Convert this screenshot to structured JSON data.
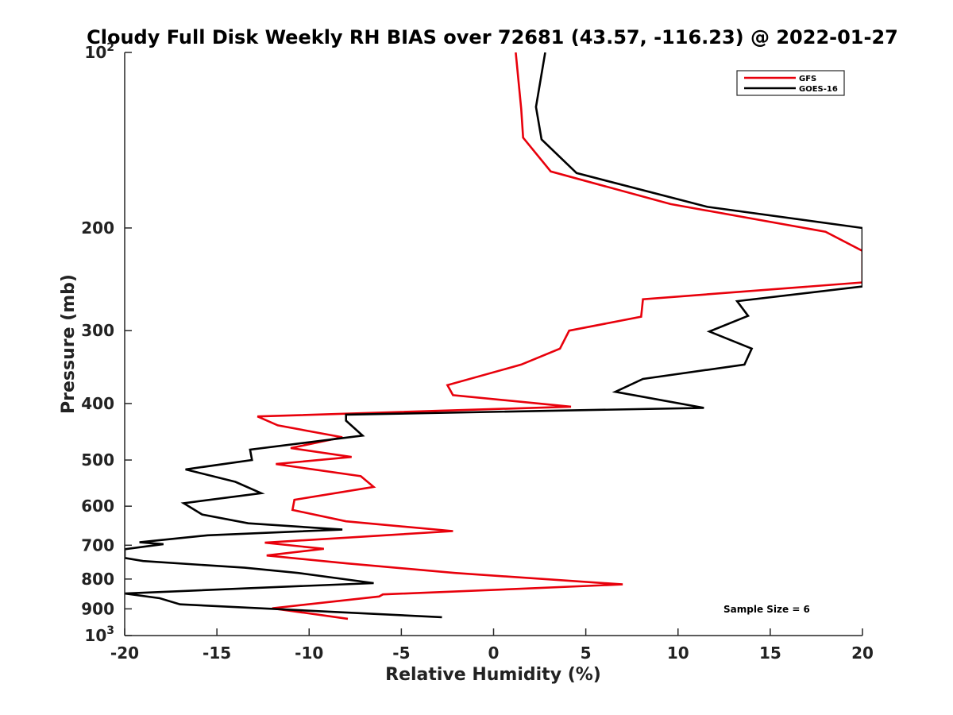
{
  "chart_data": {
    "type": "line",
    "title": "Cloudy Full Disk Weekly RH BIAS over 72681 (43.57, -116.23) @ 2022-01-27",
    "xlabel": "Relative Humidity (%)",
    "ylabel": "Pressure (mb)",
    "xlim": [
      -20,
      20
    ],
    "ylim": [
      1000,
      100
    ],
    "y_scale": "log",
    "y_reversed": true,
    "grid": false,
    "legend_position": "top-right",
    "annotation": "Sample Size = 6",
    "x_ticks": [
      -20,
      -15,
      -10,
      -5,
      0,
      5,
      10,
      15,
      20
    ],
    "x_tick_labels": [
      "-20",
      "-15",
      "-10",
      "-5",
      "0",
      "5",
      "10",
      "15",
      "20"
    ],
    "y_ticks": [
      {
        "value": 100,
        "base": "10",
        "exp": "2"
      },
      {
        "value": 200,
        "label": "200"
      },
      {
        "value": 300,
        "label": "300"
      },
      {
        "value": 400,
        "label": "400"
      },
      {
        "value": 500,
        "label": "500"
      },
      {
        "value": 600,
        "label": "600"
      },
      {
        "value": 700,
        "label": "700"
      },
      {
        "value": 800,
        "label": "800"
      },
      {
        "value": 900,
        "label": "900"
      },
      {
        "value": 1000,
        "base": "10",
        "exp": "3"
      }
    ],
    "series": [
      {
        "name": "GFS",
        "color": "#e8000b",
        "points": [
          [
            1.2,
            100
          ],
          [
            1.5,
            125
          ],
          [
            1.6,
            140
          ],
          [
            3.1,
            160
          ],
          [
            9.6,
            182
          ],
          [
            18.0,
            203
          ],
          [
            20.0,
            219
          ],
          [
            20.0,
            248
          ],
          [
            8.1,
            265
          ],
          [
            8.0,
            284
          ],
          [
            4.1,
            300
          ],
          [
            3.6,
            322
          ],
          [
            1.5,
            343
          ],
          [
            -2.5,
            372
          ],
          [
            -2.2,
            387
          ],
          [
            4.2,
            405
          ],
          [
            -12.8,
            421
          ],
          [
            -11.7,
            436
          ],
          [
            -8.2,
            457
          ],
          [
            -11.0,
            477
          ],
          [
            -7.7,
            494
          ],
          [
            -11.8,
            508
          ],
          [
            -7.2,
            533
          ],
          [
            -6.5,
            556
          ],
          [
            -10.8,
            585
          ],
          [
            -10.9,
            609
          ],
          [
            -8.0,
            637
          ],
          [
            -2.2,
            662
          ],
          [
            -12.4,
            693
          ],
          [
            -9.2,
            710
          ],
          [
            -12.3,
            729
          ],
          [
            -8.0,
            752
          ],
          [
            -2.1,
            781
          ],
          [
            7.0,
            817
          ],
          [
            2.0,
            830
          ],
          [
            -6.0,
            850
          ],
          [
            -6.2,
            857
          ],
          [
            -12.0,
            898
          ],
          [
            -7.9,
            936
          ]
        ]
      },
      {
        "name": "GOES-16",
        "color": "#000000",
        "points": [
          [
            2.8,
            100
          ],
          [
            2.3,
            124
          ],
          [
            2.6,
            141
          ],
          [
            4.5,
            161
          ],
          [
            11.6,
            184
          ],
          [
            20.0,
            200
          ],
          [
            20.0,
            252
          ],
          [
            13.2,
            267
          ],
          [
            13.8,
            283
          ],
          [
            11.7,
            301
          ],
          [
            14.0,
            322
          ],
          [
            13.6,
            343
          ],
          [
            8.1,
            363
          ],
          [
            6.6,
            382
          ],
          [
            11.4,
            407
          ],
          [
            -8.0,
            418
          ],
          [
            -8.0,
            428
          ],
          [
            -7.1,
            454
          ],
          [
            -13.2,
            480
          ],
          [
            -13.1,
            500
          ],
          [
            -16.7,
            519
          ],
          [
            -14.0,
            545
          ],
          [
            -12.6,
            570
          ],
          [
            -16.8,
            593
          ],
          [
            -15.8,
            620
          ],
          [
            -13.3,
            642
          ],
          [
            -8.2,
            658
          ],
          [
            -15.5,
            673
          ],
          [
            -19.2,
            692
          ],
          [
            -17.9,
            697
          ],
          [
            -20.0,
            711
          ],
          [
            -20.0,
            736
          ],
          [
            -19.0,
            745
          ],
          [
            -13.5,
            765
          ],
          [
            -10.6,
            781
          ],
          [
            -6.5,
            813
          ],
          [
            -11.5,
            825
          ],
          [
            -20.0,
            847
          ],
          [
            -18.1,
            863
          ],
          [
            -17.0,
            884
          ],
          [
            -2.8,
            930
          ]
        ]
      }
    ]
  }
}
